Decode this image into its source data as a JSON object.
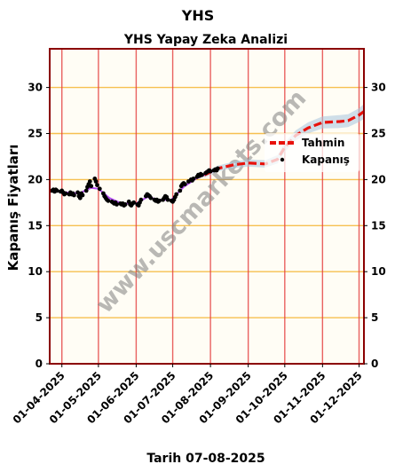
{
  "chart_data": {
    "type": "line",
    "suptitle": "YHS",
    "title": "YHS Yapay Zeka Analizi",
    "ylabel": "Kapanış Fiyatları",
    "xlabel": "Tarih 07-08-2025",
    "watermark": "www.uscmarkets.com",
    "x_range": [
      "2025-03-22",
      "2025-12-05"
    ],
    "ylim": [
      0,
      34.2
    ],
    "yticks": [
      0,
      5,
      10,
      15,
      20,
      25,
      30
    ],
    "xticks": [
      "01-04-2025",
      "01-05-2025",
      "01-06-2025",
      "01-07-2025",
      "01-08-2025",
      "01-09-2025",
      "01-10-2025",
      "01-11-2025",
      "01-12-2025"
    ],
    "grid": {
      "horizontal": "gold",
      "vertical": "red"
    },
    "legend_position": "upper-right",
    "colors": {
      "forecast": "#e8120c",
      "band": "#a8c4dc",
      "close": "#000000",
      "smooth": "#a020f0",
      "hgrid": "#f6c050",
      "vgrid": "#e33b3b",
      "frame": "#8b0000",
      "plot_bg": "#fffdf5"
    },
    "series": [
      {
        "name": "Kapanış",
        "style": "points",
        "points": [
          [
            "2025-03-24",
            18.8
          ],
          [
            "2025-03-25",
            18.9
          ],
          [
            "2025-03-26",
            18.7
          ],
          [
            "2025-03-27",
            18.9
          ],
          [
            "2025-03-28",
            18.8
          ],
          [
            "2025-03-31",
            18.7
          ],
          [
            "2025-04-01",
            18.8
          ],
          [
            "2025-04-02",
            18.6
          ],
          [
            "2025-04-03",
            18.4
          ],
          [
            "2025-04-04",
            18.5
          ],
          [
            "2025-04-07",
            18.4
          ],
          [
            "2025-04-08",
            18.6
          ],
          [
            "2025-04-09",
            18.4
          ],
          [
            "2025-04-10",
            18.5
          ],
          [
            "2025-04-11",
            18.3
          ],
          [
            "2025-04-14",
            18.6
          ],
          [
            "2025-04-15",
            18.2
          ],
          [
            "2025-04-16",
            18.0
          ],
          [
            "2025-04-17",
            18.5
          ],
          [
            "2025-04-18",
            18.3
          ],
          [
            "2025-04-21",
            18.8
          ],
          [
            "2025-04-22",
            19.2
          ],
          [
            "2025-04-23",
            19.5
          ],
          [
            "2025-04-24",
            19.8
          ],
          [
            "2025-04-25",
            19.3
          ],
          [
            "2025-04-28",
            20.1
          ],
          [
            "2025-04-29",
            19.8
          ],
          [
            "2025-04-30",
            19.4
          ],
          [
            "2025-05-02",
            19.0
          ],
          [
            "2025-05-05",
            18.5
          ],
          [
            "2025-05-06",
            18.2
          ],
          [
            "2025-05-07",
            18.0
          ],
          [
            "2025-05-08",
            17.8
          ],
          [
            "2025-05-09",
            17.7
          ],
          [
            "2025-05-12",
            17.6
          ],
          [
            "2025-05-13",
            17.5
          ],
          [
            "2025-05-14",
            17.4
          ],
          [
            "2025-05-15",
            17.5
          ],
          [
            "2025-05-16",
            17.3
          ],
          [
            "2025-05-19",
            17.4
          ],
          [
            "2025-05-20",
            17.3
          ],
          [
            "2025-05-21",
            17.4
          ],
          [
            "2025-05-22",
            17.2
          ],
          [
            "2025-05-23",
            17.3
          ],
          [
            "2025-05-26",
            17.6
          ],
          [
            "2025-05-27",
            17.3
          ],
          [
            "2025-05-28",
            17.2
          ],
          [
            "2025-05-29",
            17.4
          ],
          [
            "2025-05-30",
            17.5
          ],
          [
            "2025-06-02",
            17.3
          ],
          [
            "2025-06-03",
            17.2
          ],
          [
            "2025-06-04",
            17.5
          ],
          [
            "2025-06-05",
            17.8
          ],
          [
            "2025-06-09",
            18.2
          ],
          [
            "2025-06-10",
            18.4
          ],
          [
            "2025-06-11",
            18.3
          ],
          [
            "2025-06-12",
            18.2
          ],
          [
            "2025-06-13",
            18.0
          ],
          [
            "2025-06-16",
            17.8
          ],
          [
            "2025-06-17",
            17.7
          ],
          [
            "2025-06-18",
            17.8
          ],
          [
            "2025-06-19",
            17.6
          ],
          [
            "2025-06-20",
            17.7
          ],
          [
            "2025-06-23",
            17.8
          ],
          [
            "2025-06-24",
            18.0
          ],
          [
            "2025-06-25",
            18.2
          ],
          [
            "2025-06-26",
            18.1
          ],
          [
            "2025-06-27",
            17.8
          ],
          [
            "2025-06-30",
            17.7
          ],
          [
            "2025-07-01",
            17.6
          ],
          [
            "2025-07-02",
            17.8
          ],
          [
            "2025-07-03",
            18.1
          ],
          [
            "2025-07-04",
            18.4
          ],
          [
            "2025-07-07",
            18.8
          ],
          [
            "2025-07-08",
            19.3
          ],
          [
            "2025-07-09",
            19.5
          ],
          [
            "2025-07-10",
            19.6
          ],
          [
            "2025-07-11",
            19.5
          ],
          [
            "2025-07-14",
            19.8
          ],
          [
            "2025-07-16",
            20.0
          ],
          [
            "2025-07-17",
            19.9
          ],
          [
            "2025-07-18",
            20.1
          ],
          [
            "2025-07-21",
            20.3
          ],
          [
            "2025-07-22",
            20.5
          ],
          [
            "2025-07-23",
            20.4
          ],
          [
            "2025-07-24",
            20.6
          ],
          [
            "2025-07-25",
            20.5
          ],
          [
            "2025-07-28",
            20.7
          ],
          [
            "2025-07-29",
            20.8
          ],
          [
            "2025-07-30",
            20.9
          ],
          [
            "2025-07-31",
            21.0
          ],
          [
            "2025-08-01",
            20.9
          ],
          [
            "2025-08-04",
            21.0
          ],
          [
            "2025-08-05",
            21.1
          ],
          [
            "2025-08-06",
            21.0
          ],
          [
            "2025-08-07",
            21.2
          ]
        ]
      },
      {
        "style": "smooth-line",
        "points": [
          [
            "2025-03-24",
            18.8
          ],
          [
            "2025-04-05",
            18.6
          ],
          [
            "2025-04-15",
            18.5
          ],
          [
            "2025-04-25",
            19.1
          ],
          [
            "2025-05-01",
            19.0
          ],
          [
            "2025-05-10",
            18.0
          ],
          [
            "2025-05-20",
            17.4
          ],
          [
            "2025-06-01",
            17.4
          ],
          [
            "2025-06-10",
            18.1
          ],
          [
            "2025-06-20",
            17.8
          ],
          [
            "2025-06-30",
            17.8
          ],
          [
            "2025-07-10",
            19.2
          ],
          [
            "2025-07-20",
            20.1
          ],
          [
            "2025-08-01",
            20.8
          ],
          [
            "2025-08-07",
            21.1
          ]
        ]
      },
      {
        "name": "Tahmin",
        "style": "dashed-line",
        "points": [
          [
            "2025-07-27",
            20.5
          ],
          [
            "2025-08-07",
            21.2
          ],
          [
            "2025-08-20",
            21.6
          ],
          [
            "2025-09-01",
            21.8
          ],
          [
            "2025-09-15",
            21.7
          ],
          [
            "2025-09-25",
            22.2
          ],
          [
            "2025-10-01",
            23.5
          ],
          [
            "2025-10-10",
            24.8
          ],
          [
            "2025-10-20",
            25.6
          ],
          [
            "2025-11-01",
            26.2
          ],
          [
            "2025-11-15",
            26.3
          ],
          [
            "2025-11-22",
            26.4
          ],
          [
            "2025-12-01",
            27.0
          ],
          [
            "2025-12-05",
            27.4
          ]
        ],
        "band_halfwidth": [
          0.3,
          0.3,
          0.35,
          0.4,
          0.4,
          0.45,
          0.5,
          0.55,
          0.6,
          0.65,
          0.7,
          0.7,
          0.75,
          0.8
        ]
      }
    ]
  }
}
